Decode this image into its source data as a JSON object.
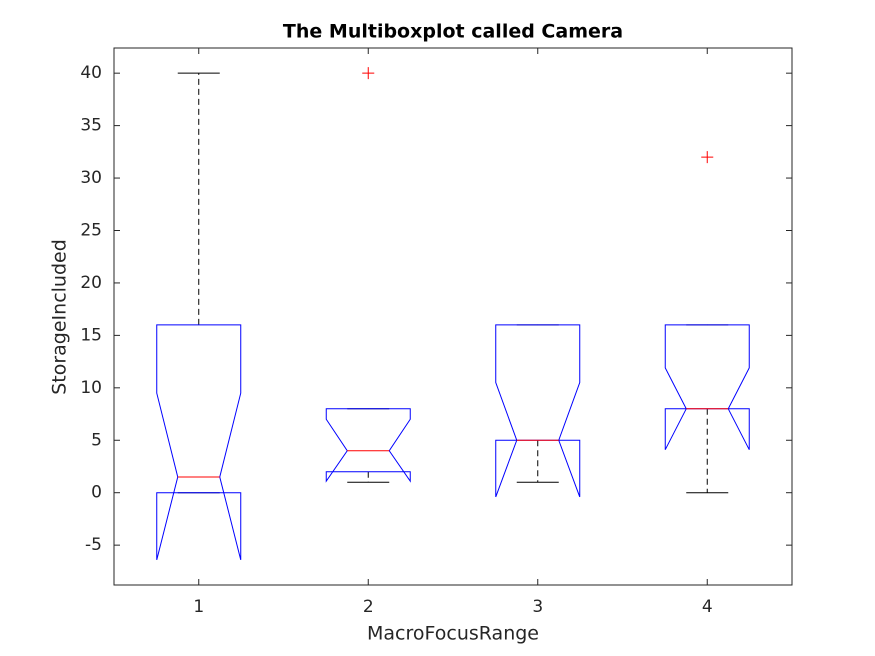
{
  "chart_data": {
    "type": "boxplot",
    "title": "The Multiboxplot called Camera",
    "x_label": "MacroFocusRange",
    "y_label": "StorageIncluded",
    "categories": [
      "1",
      "2",
      "3",
      "4"
    ],
    "boxes": [
      {
        "whisker_low": 0,
        "q1": 0,
        "median": 1.5,
        "q3": 16,
        "whisker_high": 40,
        "notch_low": -6.4,
        "notch_high": 9.5,
        "outliers": []
      },
      {
        "whisker_low": 1,
        "q1": 2,
        "median": 4,
        "q3": 8,
        "whisker_high": 8,
        "notch_low": 1.1,
        "notch_high": 7,
        "outliers": [
          40
        ]
      },
      {
        "whisker_low": 1,
        "q1": 5,
        "median": 5,
        "q3": 16,
        "whisker_high": 16,
        "notch_low": -0.4,
        "notch_high": 10.5,
        "outliers": []
      },
      {
        "whisker_low": 0,
        "q1": 8,
        "median": 8,
        "q3": 16,
        "whisker_high": 16,
        "notch_low": 4.1,
        "notch_high": 11.9,
        "outliers": [
          32
        ]
      }
    ],
    "box_color": "#0000ff",
    "median_color": "#ff0000",
    "whisker_color": "#000000",
    "outlier_color": "#ff0000",
    "ylim": [
      -8.8,
      42.4
    ],
    "yticks": [
      -5,
      0,
      5,
      10,
      15,
      20,
      25,
      30,
      35,
      40
    ],
    "grid": false
  }
}
